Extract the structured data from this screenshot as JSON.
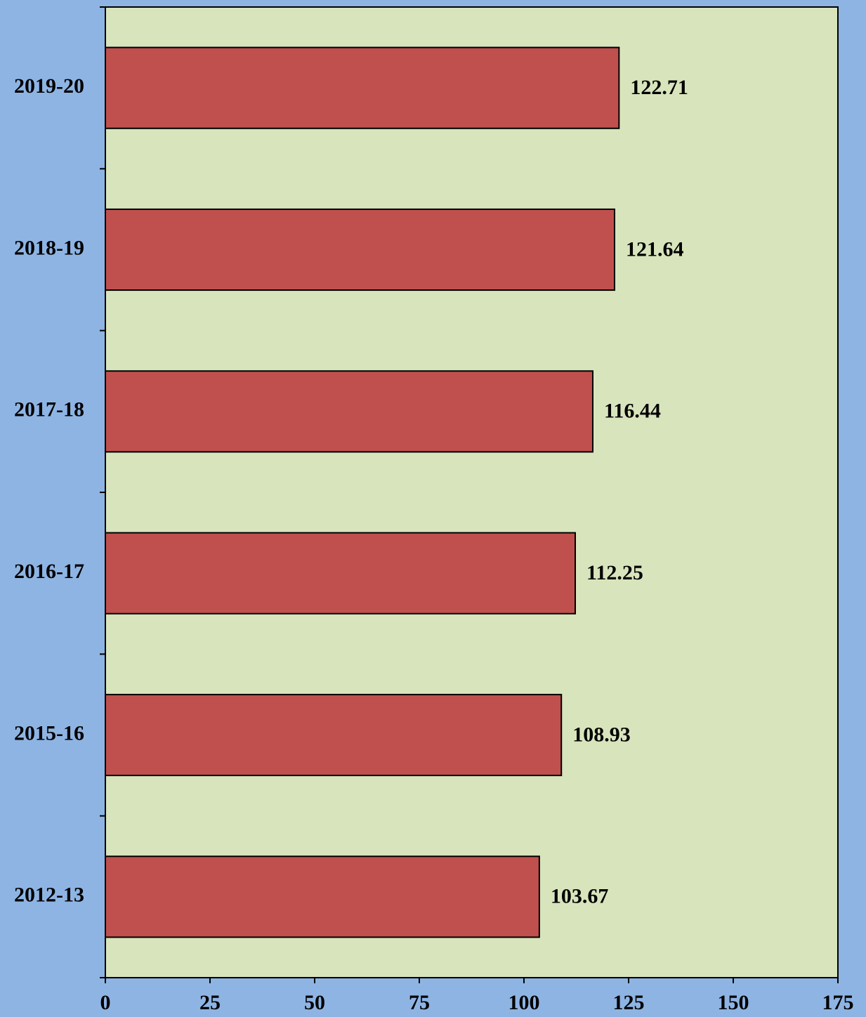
{
  "chart_data": {
    "type": "barh",
    "categories": [
      "2019-20",
      "2018-19",
      "2017-18",
      "2016-17",
      "2015-16",
      "2012-13"
    ],
    "values": [
      122.71,
      121.64,
      116.44,
      112.25,
      108.93,
      103.67
    ],
    "color": "#c0504d",
    "xlim": [
      0,
      175
    ],
    "xticks": [
      0,
      25,
      50,
      75,
      100,
      125,
      150,
      175
    ],
    "grid": false
  }
}
